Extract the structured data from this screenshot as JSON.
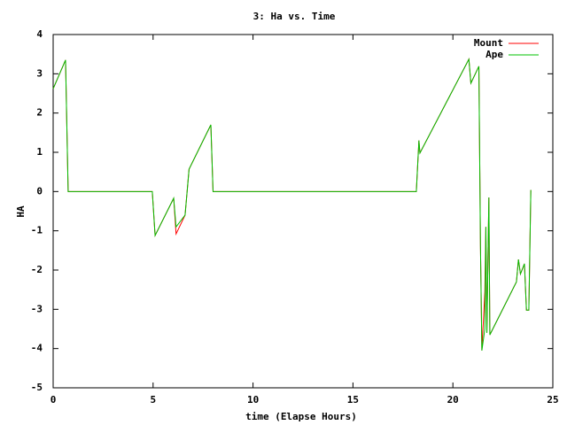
{
  "chart_data": {
    "type": "line",
    "title": "3: Ha vs. Time",
    "xlabel": "time (Elapse Hours)",
    "ylabel": "HA",
    "x": [
      0,
      0.62,
      0.75,
      4.96,
      5.1,
      6.03,
      6.15,
      6.6,
      6.8,
      7.89,
      8.0,
      18.17,
      18.3,
      18.35,
      20.8,
      20.9,
      21.3,
      21.38,
      21.45,
      21.6,
      21.65,
      21.7,
      21.8,
      21.85,
      23.18,
      23.28,
      23.38,
      23.58,
      23.68,
      23.8,
      23.9
    ],
    "series": [
      {
        "name": "Mount",
        "color": "#ff0000",
        "values": [
          2.62,
          3.35,
          0,
          0,
          -1.12,
          -0.17,
          -1.08,
          -0.6,
          0.57,
          1.7,
          0,
          0,
          1.3,
          0.98,
          3.37,
          2.76,
          3.19,
          -1.4,
          -4.05,
          -2.55,
          -0.9,
          -3.6,
          -0.15,
          -3.65,
          -2.3,
          -1.73,
          -2.1,
          -1.84,
          -3.02,
          -3.02,
          0.04
        ]
      },
      {
        "name": "Ape",
        "color": "#00c000",
        "values": [
          2.62,
          3.35,
          0,
          0,
          -1.12,
          -0.17,
          -0.9,
          -0.6,
          0.57,
          1.7,
          0,
          0,
          1.3,
          0.98,
          3.37,
          2.76,
          3.19,
          -1.4,
          -4.05,
          -3.5,
          -0.9,
          -3.6,
          -0.15,
          -3.65,
          -2.3,
          -1.73,
          -2.1,
          -1.84,
          -3.02,
          -3.02,
          0.04
        ]
      }
    ],
    "xlim": [
      0,
      25
    ],
    "xticks": [
      0,
      5,
      10,
      15,
      20,
      25
    ],
    "ylim": [
      -5,
      4
    ],
    "yticks": [
      -5,
      -4,
      -3,
      -2,
      -1,
      0,
      1,
      2,
      3,
      4
    ],
    "legend": "top-right",
    "grid": false
  }
}
